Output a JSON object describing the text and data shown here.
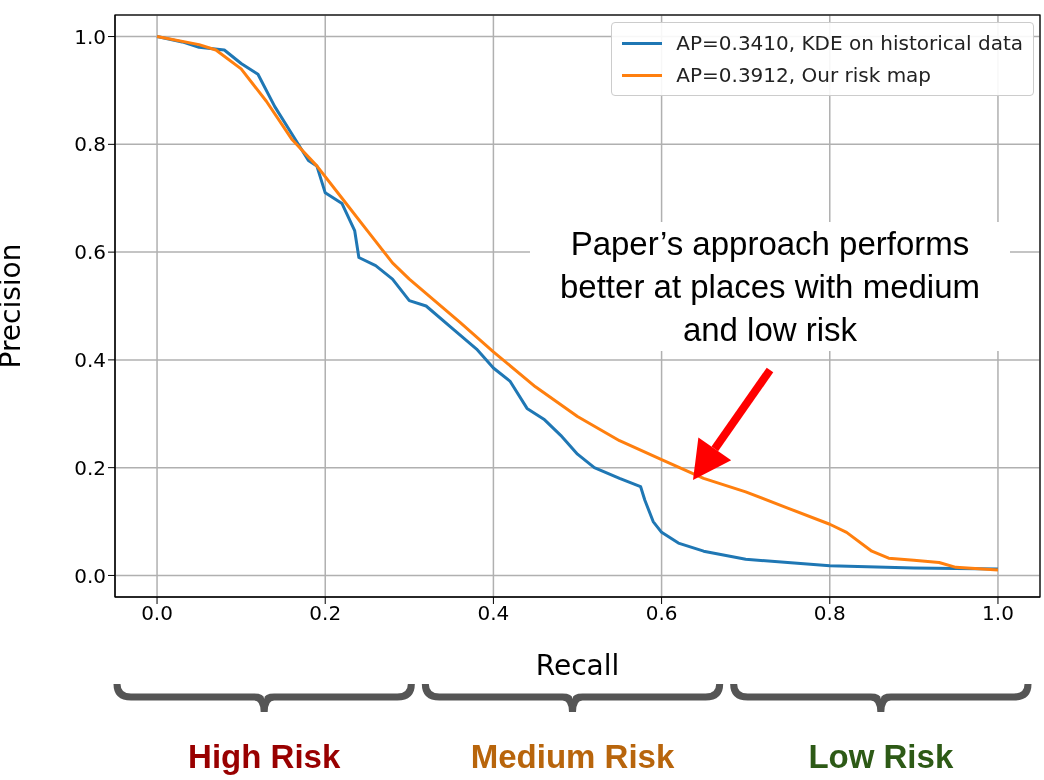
{
  "chart_data": {
    "type": "line",
    "xlabel": "Recall",
    "ylabel": "Precision",
    "xlim": [
      -0.05,
      1.05
    ],
    "ylim": [
      -0.04,
      1.04
    ],
    "xticks": [
      {
        "value": 0,
        "label": "0.0"
      },
      0.2,
      0.4,
      0.6,
      0.8,
      {
        "value": 1,
        "label": "1.0"
      }
    ],
    "yticks": [
      {
        "value": 0,
        "label": "0.0"
      },
      0.2,
      0.4,
      0.6,
      0.8,
      {
        "value": 1,
        "label": "1.0"
      }
    ],
    "grid": true,
    "legend": "top right",
    "series": [
      {
        "name": "AP=0.3410, KDE on historical data",
        "color": "#1f77b4",
        "x": [
          0,
          0.03,
          0.05,
          0.08,
          0.1,
          0.12,
          0.14,
          0.16,
          0.18,
          0.19,
          0.2,
          0.22,
          0.235,
          0.24,
          0.26,
          0.28,
          0.3,
          0.32,
          0.35,
          0.38,
          0.4,
          0.42,
          0.44,
          0.46,
          0.48,
          0.5,
          0.52,
          0.55,
          0.575,
          0.58,
          0.59,
          0.6,
          0.62,
          0.65,
          0.7,
          0.75,
          0.8,
          0.9,
          1
        ],
        "values": [
          1,
          0.99,
          0.98,
          0.975,
          0.95,
          0.93,
          0.87,
          0.82,
          0.77,
          0.76,
          0.71,
          0.69,
          0.64,
          0.59,
          0.575,
          0.55,
          0.51,
          0.5,
          0.46,
          0.42,
          0.385,
          0.36,
          0.31,
          0.29,
          0.26,
          0.225,
          0.2,
          0.18,
          0.165,
          0.14,
          0.1,
          0.08,
          0.06,
          0.045,
          0.03,
          0.024,
          0.018,
          0.014,
          0.012
        ]
      },
      {
        "name": "AP=0.3912, Our risk map",
        "color": "#ff7f0e",
        "x": [
          0,
          0.05,
          0.07,
          0.1,
          0.13,
          0.16,
          0.19,
          0.22,
          0.25,
          0.28,
          0.3,
          0.33,
          0.36,
          0.4,
          0.45,
          0.5,
          0.55,
          0.6,
          0.65,
          0.7,
          0.75,
          0.8,
          0.82,
          0.85,
          0.87,
          0.9,
          0.93,
          0.95,
          1
        ],
        "values": [
          1,
          0.985,
          0.975,
          0.94,
          0.88,
          0.81,
          0.76,
          0.7,
          0.64,
          0.58,
          0.55,
          0.51,
          0.47,
          0.415,
          0.35,
          0.295,
          0.25,
          0.215,
          0.18,
          0.155,
          0.125,
          0.095,
          0.08,
          0.045,
          0.032,
          0.028,
          0.024,
          0.015,
          0.01
        ]
      }
    ],
    "annotations": [
      "Paper’s approach performs better at places with medium and low risk",
      "High Risk",
      "Medium Risk",
      "Low Risk"
    ]
  }
}
